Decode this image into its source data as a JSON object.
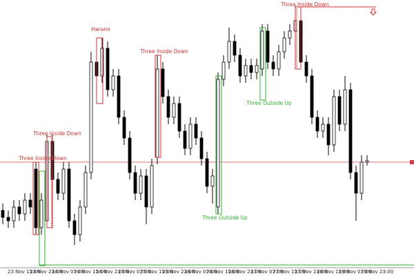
{
  "chart_data": {
    "type": "candlestick",
    "categories": [
      null,
      "23 Nov 15:00",
      null,
      null,
      null,
      "23 Nov 23:00",
      null,
      null,
      null,
      "24 Nov 07:00",
      null,
      null,
      null,
      "24 Nov 15:00",
      null,
      null,
      null,
      "24 Nov 23:00",
      null,
      null,
      null,
      "25 Nov 07:00",
      null,
      null,
      null,
      "25 Nov 15:00",
      null,
      null,
      null,
      "25 Nov 23:00",
      null,
      null,
      null,
      "26 Nov 07:00",
      null,
      null,
      null,
      "26 Nov 15:00",
      null,
      null,
      null,
      "26 Nov 23:00",
      null,
      null,
      null,
      "27 Nov 07:00",
      null,
      null,
      null,
      "27 Nov 15:00",
      null,
      null,
      null,
      "27 Nov 23:00",
      null,
      null,
      null,
      "28 Nov 15:00",
      null,
      null,
      null,
      "29 Nov 07:00",
      null,
      null,
      null,
      "29 Nov 23:00",
      null
    ],
    "open": [
      95,
      85,
      80,
      100,
      90,
      110,
      155,
      70,
      80,
      195,
      140,
      120,
      155,
      80,
      60,
      100,
      150,
      310,
      290,
      330,
      270,
      290,
      230,
      200,
      150,
      120,
      145,
      100,
      172,
      300,
      260,
      230,
      250,
      210,
      185,
      220,
      200,
      170,
      130,
      100,
      285,
      310,
      340,
      320,
      290,
      305,
      295,
      300,
      355,
      310,
      300,
      325,
      345,
      355,
      370,
      310,
      290,
      230,
      210,
      220,
      190,
      260,
      220,
      270,
      150,
      120,
      165
    ],
    "high": [
      105,
      95,
      110,
      110,
      120,
      120,
      165,
      120,
      205,
      205,
      150,
      165,
      165,
      90,
      110,
      160,
      325,
      320,
      345,
      340,
      300,
      300,
      240,
      210,
      160,
      155,
      155,
      170,
      320,
      310,
      270,
      260,
      260,
      220,
      230,
      230,
      210,
      180,
      155,
      295,
      320,
      360,
      350,
      330,
      315,
      315,
      315,
      365,
      365,
      320,
      335,
      355,
      365,
      392,
      380,
      320,
      300,
      240,
      230,
      230,
      270,
      270,
      290,
      280,
      160,
      175,
      175
    ],
    "low": [
      75,
      70,
      70,
      80,
      80,
      90,
      60,
      60,
      70,
      130,
      110,
      110,
      70,
      45,
      50,
      90,
      140,
      280,
      280,
      260,
      260,
      220,
      190,
      140,
      110,
      110,
      75,
      90,
      162,
      250,
      220,
      220,
      200,
      175,
      175,
      190,
      160,
      120,
      105,
      90,
      275,
      300,
      310,
      280,
      280,
      285,
      285,
      290,
      300,
      290,
      290,
      315,
      335,
      345,
      300,
      280,
      220,
      200,
      200,
      175,
      180,
      210,
      210,
      140,
      80,
      110,
      160
    ],
    "close": [
      85,
      80,
      100,
      90,
      110,
      100,
      70,
      110,
      195,
      140,
      120,
      155,
      80,
      60,
      100,
      150,
      310,
      290,
      330,
      270,
      290,
      230,
      200,
      150,
      120,
      145,
      100,
      160,
      300,
      260,
      230,
      250,
      210,
      185,
      220,
      200,
      170,
      130,
      145,
      285,
      310,
      340,
      320,
      290,
      305,
      295,
      305,
      355,
      310,
      300,
      325,
      345,
      355,
      370,
      310,
      290,
      230,
      210,
      220,
      190,
      260,
      220,
      270,
      150,
      120,
      165,
      167
    ],
    "ylim": [
      0,
      400
    ],
    "annotations": [
      "Harami",
      "Three Inside Down",
      "Three Inside Down",
      "Three Inside Down",
      "Three Outside Up",
      "Three Outside Up",
      "Three Inside Down"
    ]
  }
}
